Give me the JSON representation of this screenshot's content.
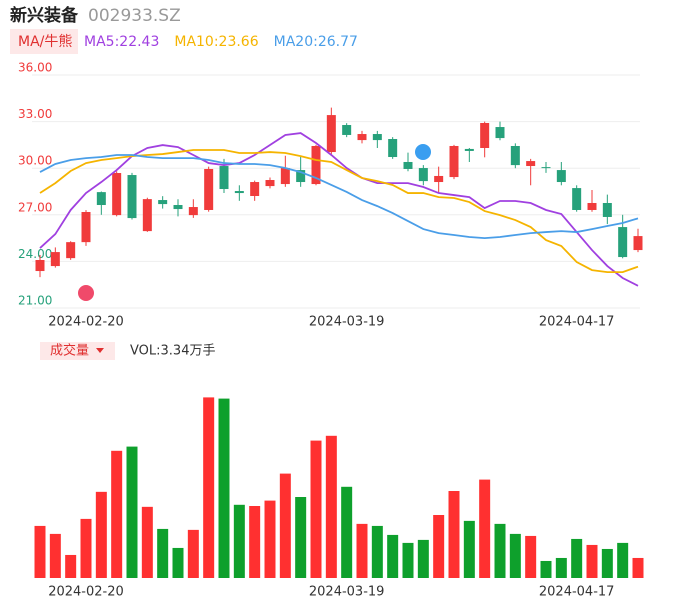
{
  "header": {
    "name": "新兴装备",
    "code": "002933.SZ",
    "indicator": "MA/牛熊"
  },
  "chart_data": {
    "type": "candlestick",
    "categories": [
      null,
      null,
      null,
      "2024-02-20",
      null,
      null,
      null,
      null,
      null,
      null,
      null,
      null,
      null,
      null,
      null,
      null,
      null,
      null,
      null,
      null,
      "2024-03-19",
      null,
      null,
      null,
      null,
      null,
      null,
      null,
      null,
      null,
      null,
      null,
      null,
      null,
      null,
      "2024-04-17",
      null,
      null,
      null,
      null
    ],
    "ylim": [
      21,
      36
    ],
    "yticks": [
      {
        "value": 36,
        "label": "36.00"
      },
      {
        "value": 33,
        "label": "33.00"
      },
      {
        "value": 30,
        "label": "30.00"
      },
      {
        "value": 27,
        "label": "27.00"
      },
      {
        "value": 24,
        "label": "24.00"
      },
      {
        "value": 21,
        "label": "21.00"
      }
    ],
    "grid": true,
    "up_color": "#f03b3b",
    "down_color": "#26a17b",
    "open": [
      23.38,
      23.7,
      24.21,
      25.24,
      28.46,
      26.98,
      29.56,
      25.95,
      27.95,
      27.63,
      26.98,
      27.31,
      30.14,
      28.53,
      28.21,
      28.85,
      28.98,
      29.88,
      28.98,
      31.04,
      32.78,
      31.81,
      32.2,
      31.88,
      30.4,
      30.01,
      29.11,
      29.43,
      31.24,
      31.3,
      32.65,
      31.43,
      30.14,
      30.07,
      29.88,
      28.72,
      27.31,
      27.76,
      26.21,
      24.73
    ],
    "close": [
      24.09,
      24.6,
      25.24,
      27.18,
      27.63,
      29.69,
      26.79,
      28.01,
      27.69,
      27.37,
      27.5,
      29.95,
      28.66,
      28.4,
      29.11,
      29.24,
      30.01,
      29.11,
      31.43,
      33.42,
      32.14,
      32.2,
      31.81,
      30.72,
      29.95,
      29.17,
      29.5,
      31.43,
      31.11,
      32.91,
      31.94,
      30.2,
      30.46,
      30.01,
      29.11,
      27.31,
      27.76,
      26.86,
      24.28,
      25.63
    ],
    "high": [
      24.41,
      24.9,
      25.3,
      27.3,
      28.5,
      29.8,
      29.7,
      28.1,
      28.2,
      28.0,
      28.0,
      30.1,
      30.6,
      28.9,
      29.2,
      29.4,
      30.8,
      30.8,
      31.5,
      33.9,
      32.9,
      32.4,
      32.4,
      32.0,
      31.0,
      30.2,
      30.1,
      31.5,
      31.3,
      33.0,
      33.0,
      31.6,
      30.6,
      30.4,
      30.4,
      28.9,
      28.6,
      28.3,
      27.0,
      26.1
    ],
    "low": [
      22.99,
      23.6,
      24.1,
      25.0,
      27.0,
      26.9,
      26.7,
      25.9,
      27.4,
      26.9,
      26.8,
      27.2,
      28.4,
      27.9,
      27.9,
      28.7,
      28.8,
      28.8,
      28.9,
      30.9,
      32.0,
      31.6,
      31.3,
      30.6,
      29.8,
      28.9,
      28.4,
      29.3,
      30.4,
      30.7,
      31.8,
      30.0,
      28.9,
      29.7,
      28.9,
      27.2,
      27.2,
      26.4,
      24.2,
      24.6
    ],
    "series": [
      {
        "label": "MA5:22.43",
        "color": "#a040e0",
        "values": [
          24.86,
          25.76,
          27.31,
          28.4,
          29.11,
          29.88,
          30.78,
          31.3,
          31.49,
          31.36,
          30.85,
          30.33,
          30.2,
          30.33,
          30.85,
          31.49,
          32.14,
          32.26,
          31.62,
          30.85,
          30.01,
          29.37,
          29.04,
          29.04,
          29.04,
          28.79,
          28.4,
          28.27,
          28.14,
          27.43,
          27.89,
          27.89,
          27.76,
          27.31,
          27.05,
          25.89,
          24.73,
          23.7,
          22.93,
          22.43
        ]
      },
      {
        "label": "MA10:23.66",
        "color": "#f5b400",
        "values": [
          28.4,
          29.04,
          29.82,
          30.33,
          30.53,
          30.65,
          30.78,
          30.85,
          30.91,
          31.04,
          31.17,
          31.17,
          31.17,
          30.98,
          30.98,
          31.04,
          30.98,
          30.78,
          30.53,
          30.4,
          29.88,
          29.37,
          29.17,
          28.92,
          28.4,
          28.4,
          28.14,
          28.08,
          27.82,
          27.24,
          26.98,
          26.66,
          26.21,
          25.37,
          24.99,
          23.96,
          23.44,
          23.31,
          23.31,
          23.66
        ]
      },
      {
        "label": "MA20:26.77",
        "color": "#4a9ee8",
        "values": [
          29.75,
          30.27,
          30.53,
          30.65,
          30.72,
          30.85,
          30.85,
          30.72,
          30.65,
          30.65,
          30.65,
          30.53,
          30.33,
          30.27,
          30.27,
          30.2,
          30.01,
          29.75,
          29.37,
          28.92,
          28.47,
          27.95,
          27.56,
          27.11,
          26.6,
          26.08,
          25.82,
          25.7,
          25.57,
          25.5,
          25.57,
          25.7,
          25.82,
          25.89,
          25.95,
          25.89,
          26.08,
          26.28,
          26.47,
          26.77
        ]
      }
    ],
    "volume": {
      "title": "成交量",
      "label": "VOL:3.34万手",
      "ylim": [
        0,
        36
      ],
      "up_color": "#ff3030",
      "down_color": "#0ea02c",
      "values": [
        8.68,
        7.35,
        3.84,
        9.85,
        14.36,
        21.2,
        21.9,
        11.86,
        8.18,
        5.01,
        8.02,
        30.1,
        29.9,
        12.2,
        12.0,
        12.9,
        17.4,
        13.5,
        22.9,
        23.7,
        15.2,
        9.02,
        8.68,
        7.18,
        5.85,
        6.35,
        10.5,
        14.5,
        9.52,
        16.4,
        9.02,
        7.35,
        7.01,
        2.84,
        3.34,
        6.51,
        5.51,
        4.84,
        5.85,
        3.34
      ]
    }
  }
}
